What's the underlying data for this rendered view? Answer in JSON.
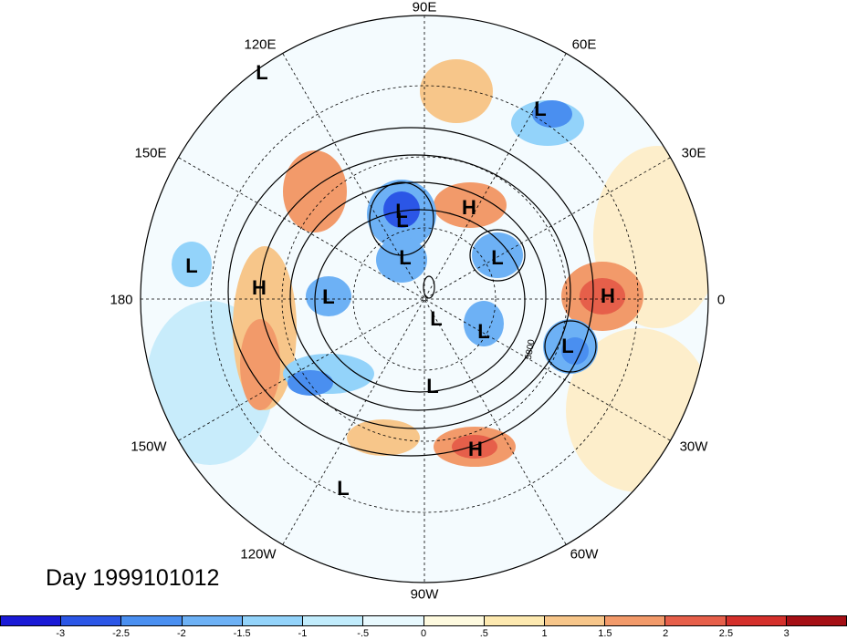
{
  "map": {
    "projection": "polar stereographic (northern hemisphere)",
    "day_label": "Day 1999101012",
    "contour_label": "5800",
    "longitude_labels": [
      {
        "name": "lon-90e",
        "text": "90E"
      },
      {
        "name": "lon-60e",
        "text": "60E"
      },
      {
        "name": "lon-120e",
        "text": "120E"
      },
      {
        "name": "lon-150e",
        "text": "150E"
      },
      {
        "name": "lon-30e",
        "text": "30E"
      },
      {
        "name": "lon-180",
        "text": "180"
      },
      {
        "name": "lon-0",
        "text": "0"
      },
      {
        "name": "lon-150w",
        "text": "150W"
      },
      {
        "name": "lon-30w",
        "text": "30W"
      },
      {
        "name": "lon-120w",
        "text": "120W"
      },
      {
        "name": "lon-60w",
        "text": "60W"
      },
      {
        "name": "lon-90w",
        "text": "90W"
      }
    ],
    "pressure_centers": [
      "L",
      "L",
      "L",
      "H",
      "L",
      "L",
      "L",
      "L",
      "H",
      "L",
      "L",
      "L",
      "L",
      "L",
      "H",
      "L",
      "H",
      "L"
    ]
  },
  "colorbar": {
    "colors": [
      "#1a1ad6",
      "#2b56e6",
      "#4a8ff0",
      "#6db1f5",
      "#93d3fa",
      "#c1ecfc",
      "#e8f9fe",
      "#fefadf",
      "#fde9b0",
      "#f7c68a",
      "#f29a6a",
      "#e65f4a",
      "#d4302b",
      "#a50f15"
    ],
    "labels": [
      "-3",
      "-2.5",
      "-2",
      "-1.5",
      "-1",
      "-.5",
      "0",
      ".5",
      "1",
      "1.5",
      "2",
      "2.5",
      "3"
    ]
  }
}
